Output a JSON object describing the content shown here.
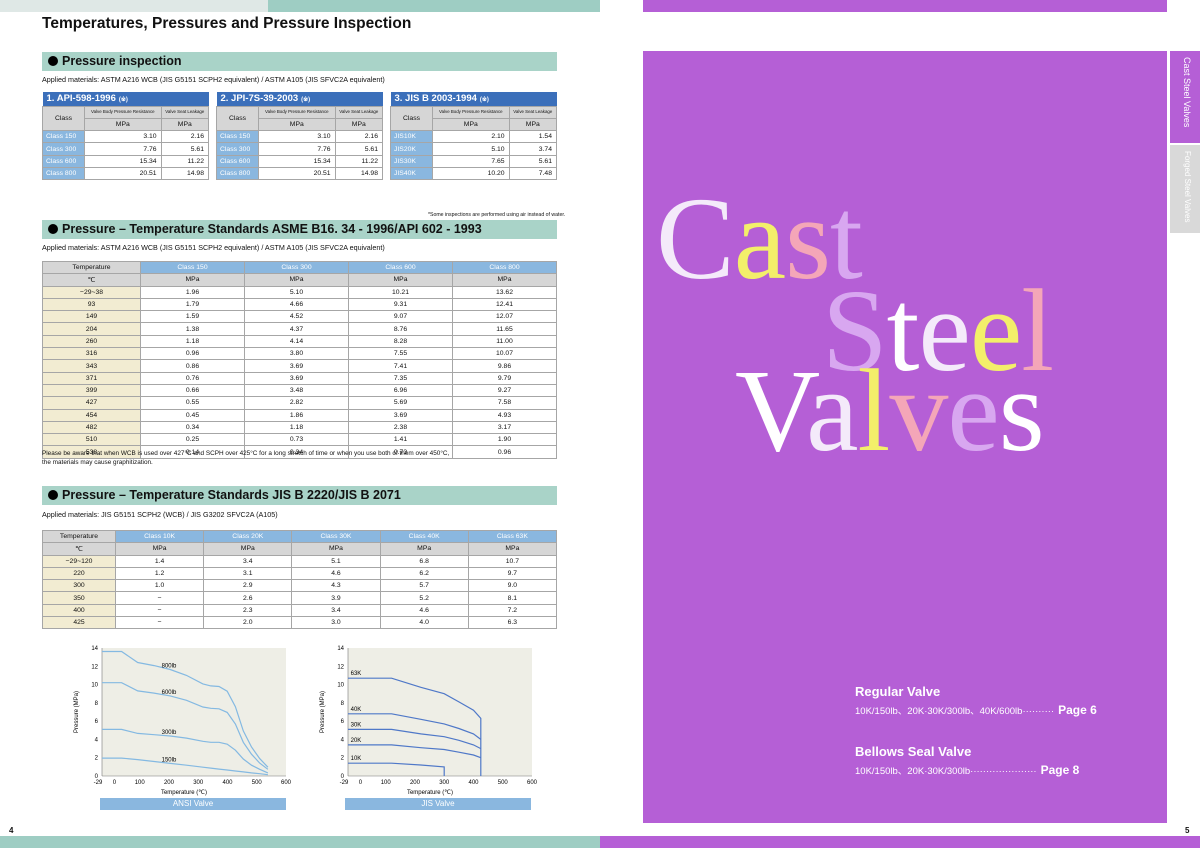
{
  "page_title": "Temperatures, Pressures and Pressure Inspection",
  "page_left": "4",
  "page_right": "5",
  "inspection": {
    "heading": "Pressure inspection",
    "applied": "Applied materials: ASTM A216 WCB (JIS G5151 SCPH2 equivalent) / ASTM A105 (JIS SFVC2A equivalent)",
    "col_class": "Class",
    "col_body": "Valve Body Pressure Resistance",
    "col_seat": "Valve Seat Leakage",
    "unit": "MPa",
    "note": "*Some inspections are performed using air instead of water.",
    "tables": [
      {
        "title": "1. API-598-1996",
        "mark": "(※)",
        "rows": [
          [
            "Class 150",
            "3.10",
            "2.16"
          ],
          [
            "Class 300",
            "7.76",
            "5.61"
          ],
          [
            "Class 600",
            "15.34",
            "11.22"
          ],
          [
            "Class 800",
            "20.51",
            "14.98"
          ]
        ]
      },
      {
        "title": "2. JPI-7S-39-2003",
        "mark": "(※)",
        "rows": [
          [
            "Class 150",
            "3.10",
            "2.16"
          ],
          [
            "Class 300",
            "7.76",
            "5.61"
          ],
          [
            "Class 600",
            "15.34",
            "11.22"
          ],
          [
            "Class 800",
            "20.51",
            "14.98"
          ]
        ]
      },
      {
        "title": "3. JIS B 2003-1994",
        "mark": "(※)",
        "rows": [
          [
            "JIS10K",
            "2.10",
            "1.54"
          ],
          [
            "JIS20K",
            "5.10",
            "3.74"
          ],
          [
            "JIS30K",
            "7.65",
            "5.61"
          ],
          [
            "JIS40K",
            "10.20",
            "7.48"
          ]
        ]
      }
    ]
  },
  "asme": {
    "heading": "Pressure – Temperature Standards  ASME B16. 34 - 1996/API 602 - 1993",
    "applied": "Applied materials: ASTM A216 WCB (JIS G5151 SCPH2 equivalent) / ASTM A105 (JIS SFVC2A equivalent)",
    "temp_label": "Temperature",
    "temp_unit": "℃",
    "unit": "MPa",
    "classes": [
      "Class 150",
      "Class 300",
      "Class 600",
      "Class 800"
    ],
    "rows": [
      [
        "−29~38",
        "1.96",
        "5.10",
        "10.21",
        "13.62"
      ],
      [
        "93",
        "1.79",
        "4.66",
        "9.31",
        "12.41"
      ],
      [
        "149",
        "1.59",
        "4.52",
        "9.07",
        "12.07"
      ],
      [
        "204",
        "1.38",
        "4.37",
        "8.76",
        "11.65"
      ],
      [
        "260",
        "1.18",
        "4.14",
        "8.28",
        "11.00"
      ],
      [
        "316",
        "0.96",
        "3.80",
        "7.55",
        "10.07"
      ],
      [
        "343",
        "0.86",
        "3.69",
        "7.41",
        "9.86"
      ],
      [
        "371",
        "0.76",
        "3.69",
        "7.35",
        "9.79"
      ],
      [
        "399",
        "0.66",
        "3.48",
        "6.96",
        "9.27"
      ],
      [
        "427",
        "0.55",
        "2.82",
        "5.69",
        "7.58"
      ],
      [
        "454",
        "0.45",
        "1.86",
        "3.69",
        "4.93"
      ],
      [
        "482",
        "0.34",
        "1.18",
        "2.38",
        "3.17"
      ],
      [
        "510",
        "0.25",
        "0.73",
        "1.41",
        "1.90"
      ],
      [
        "538",
        "0.14",
        "0.34",
        "0.73",
        "0.96"
      ]
    ],
    "footnote1": "Please be aware that when WCB is used over 427°C and SCPH over 425°C for a long stretch of time or when you use both of them over 450°C,",
    "footnote2": "the materials may cause graphitization."
  },
  "jis": {
    "heading": "Pressure – Temperature Standards  JIS B 2220/JIS B 2071",
    "applied": "Applied materials: JIS G5151 SCPH2 (WCB) / JIS G3202 SFVC2A (A105)",
    "temp_label": "Temperature",
    "temp_unit": "℃",
    "unit": "MPa",
    "classes": [
      "Class 10K",
      "Class 20K",
      "Class 30K",
      "Class 40K",
      "Class 63K"
    ],
    "rows": [
      [
        "−29~120",
        "1.4",
        "3.4",
        "5.1",
        "6.8",
        "10.7"
      ],
      [
        "220",
        "1.2",
        "3.1",
        "4.6",
        "6.2",
        "9.7"
      ],
      [
        "300",
        "1.0",
        "2.9",
        "4.3",
        "5.7",
        "9.0"
      ],
      [
        "350",
        "−",
        "2.6",
        "3.9",
        "5.2",
        "8.1"
      ],
      [
        "400",
        "−",
        "2.3",
        "3.4",
        "4.6",
        "7.2"
      ],
      [
        "425",
        "−",
        "2.0",
        "3.0",
        "4.0",
        "6.3"
      ]
    ]
  },
  "chart_data": [
    {
      "type": "line",
      "caption": "ANSI Valve",
      "xlabel": "Temperature (℃)",
      "ylabel": "Pressure (MPa)",
      "xlim": [
        -29,
        600
      ],
      "ylim": [
        0,
        14
      ],
      "xticks": [
        "-29",
        "0",
        "100",
        "200",
        "300",
        "400",
        "500",
        "600"
      ],
      "yticks": [
        "0",
        "2",
        "4",
        "6",
        "8",
        "10",
        "12",
        "14"
      ],
      "x": [
        -29,
        38,
        93,
        149,
        204,
        260,
        316,
        343,
        371,
        399,
        427,
        454,
        482,
        510,
        538
      ],
      "series": [
        {
          "name": "800lb",
          "values": [
            13.62,
            13.62,
            12.41,
            12.07,
            11.65,
            11.0,
            10.07,
            9.86,
            9.79,
            9.27,
            7.58,
            4.93,
            3.17,
            1.9,
            0.96
          ]
        },
        {
          "name": "600lb",
          "values": [
            10.21,
            10.21,
            9.31,
            9.07,
            8.76,
            8.28,
            7.55,
            7.41,
            7.35,
            6.96,
            5.69,
            3.69,
            2.38,
            1.41,
            0.73
          ]
        },
        {
          "name": "300lb",
          "values": [
            5.1,
            5.1,
            4.66,
            4.52,
            4.37,
            4.14,
            3.8,
            3.69,
            3.69,
            3.48,
            2.82,
            1.86,
            1.18,
            0.73,
            0.34
          ]
        },
        {
          "name": "150lb",
          "values": [
            1.96,
            1.96,
            1.79,
            1.59,
            1.38,
            1.18,
            0.96,
            0.86,
            0.76,
            0.66,
            0.55,
            0.45,
            0.34,
            0.25,
            0.14
          ]
        }
      ]
    },
    {
      "type": "line",
      "caption": "JIS Valve",
      "xlabel": "Temperature (℃)",
      "ylabel": "Pressure (MPa)",
      "xlim": [
        -29,
        600
      ],
      "ylim": [
        0,
        14
      ],
      "xticks": [
        "-29",
        "0",
        "100",
        "200",
        "300",
        "400",
        "500",
        "600"
      ],
      "yticks": [
        "0",
        "2",
        "4",
        "6",
        "8",
        "10",
        "12",
        "14"
      ],
      "series": [
        {
          "name": "63K",
          "x": [
            -29,
            120,
            220,
            300,
            350,
            400,
            425,
            425
          ],
          "values": [
            10.7,
            10.7,
            9.7,
            9.0,
            8.1,
            7.2,
            6.3,
            0
          ]
        },
        {
          "name": "40K",
          "x": [
            -29,
            120,
            220,
            300,
            350,
            400,
            425
          ],
          "values": [
            6.8,
            6.8,
            6.2,
            5.7,
            5.2,
            4.6,
            4.0
          ]
        },
        {
          "name": "30K",
          "x": [
            -29,
            120,
            220,
            300,
            350,
            400,
            425
          ],
          "values": [
            5.1,
            5.1,
            4.6,
            4.3,
            3.9,
            3.4,
            3.0
          ]
        },
        {
          "name": "20K",
          "x": [
            -29,
            120,
            220,
            300,
            350,
            400,
            425
          ],
          "values": [
            3.4,
            3.4,
            3.1,
            2.9,
            2.6,
            2.3,
            2.0
          ]
        },
        {
          "name": "10K",
          "x": [
            -29,
            120,
            220,
            300,
            300
          ],
          "values": [
            1.4,
            1.4,
            1.2,
            1.0,
            0
          ]
        }
      ]
    }
  ],
  "cover": {
    "word1": "Cast",
    "word2": "Steel",
    "word3": "Valves",
    "colors": [
      "#f4eafa",
      "#f3ef6a",
      "#f4a6b8",
      "#d8a7f0",
      "#ffffff"
    ],
    "tab_active": "Cast Steel Valves",
    "tab_inactive": "Forged Steel Valves",
    "items": [
      {
        "title": "Regular Valve",
        "desc": "10K/150lb、20K·30K/300lb、40K/600lb",
        "dots": "··········",
        "page": "Page 6"
      },
      {
        "title": "Bellows Seal Valve",
        "desc": "10K/150lb、20K·30K/300lb",
        "dots": "·····················",
        "page": "Page 8"
      }
    ]
  }
}
